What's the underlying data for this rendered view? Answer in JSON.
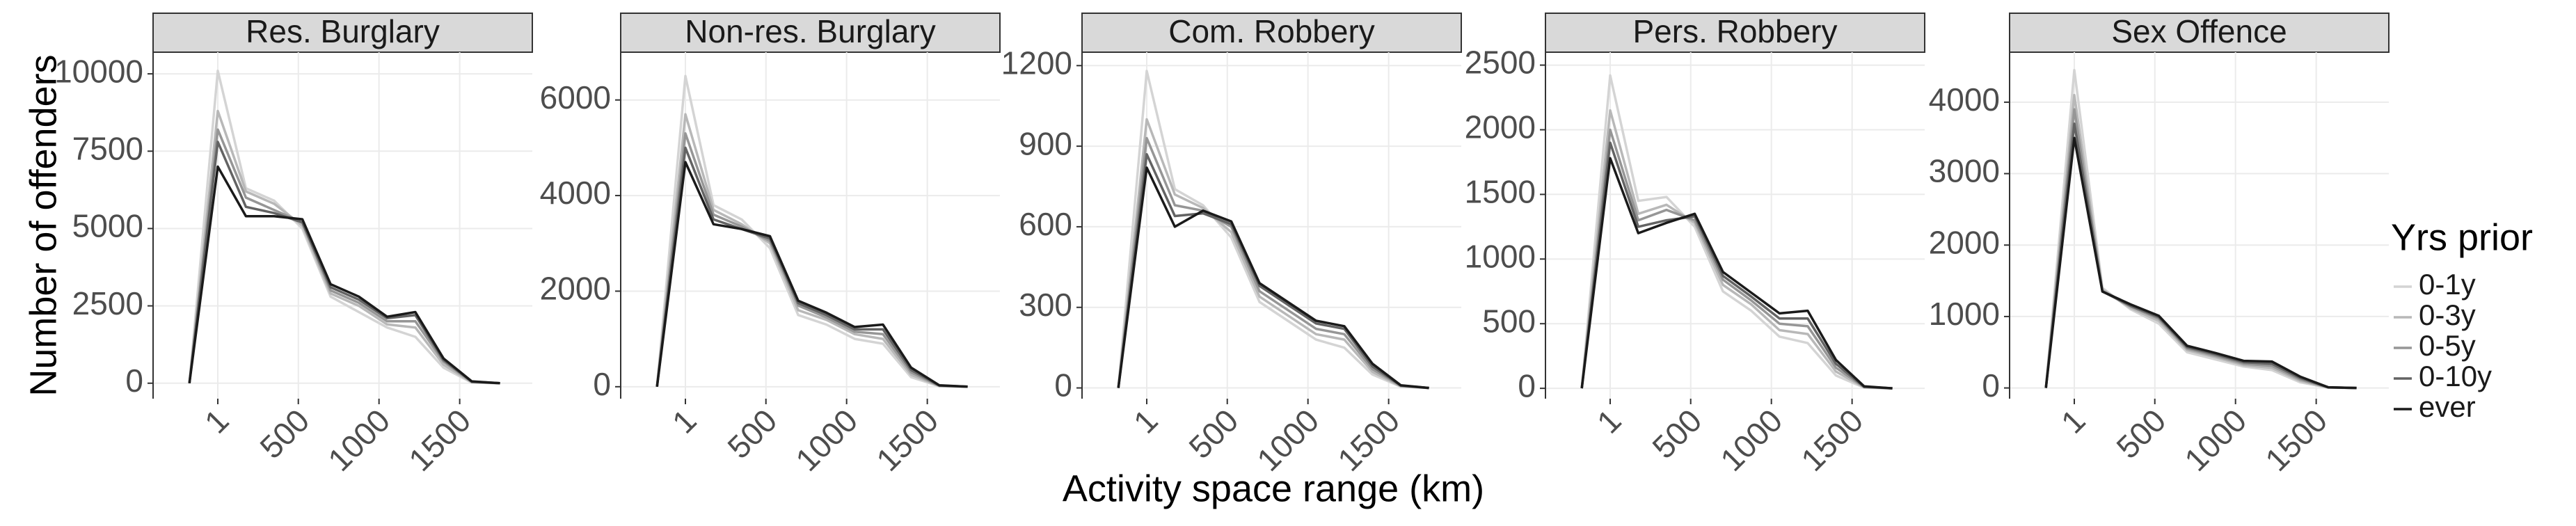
{
  "y_label": "Number of offenders",
  "x_label": "Activity space range (km)",
  "legend_title": "Yrs prior",
  "chart_data": [
    {
      "type": "line",
      "title": "Res. Burglary",
      "x": [
        -175,
        1,
        175,
        350,
        525,
        700,
        875,
        1050,
        1225,
        1400,
        1575,
        1750
      ],
      "xlim": [
        -400,
        1950
      ],
      "xticks": [
        1,
        500,
        1000,
        1500
      ],
      "ylim": [
        -500,
        10700
      ],
      "yticks": [
        0,
        2500,
        5000,
        7500,
        10000
      ],
      "grid": true,
      "series": [
        {
          "name": "0-1y",
          "color": "#d4d4d4",
          "values": [
            0,
            10100,
            6300,
            5900,
            5000,
            2800,
            2300,
            1800,
            1500,
            500,
            20,
            0
          ]
        },
        {
          "name": "0-3y",
          "color": "#b8b8b8",
          "values": [
            0,
            8800,
            6200,
            5800,
            5100,
            2900,
            2500,
            1900,
            1800,
            600,
            30,
            0
          ]
        },
        {
          "name": "0-5y",
          "color": "#969696",
          "values": [
            0,
            8200,
            6000,
            5600,
            5200,
            3000,
            2600,
            2000,
            2000,
            700,
            40,
            0
          ]
        },
        {
          "name": "0-10y",
          "color": "#636363",
          "values": [
            0,
            7800,
            5700,
            5500,
            5200,
            3100,
            2700,
            2100,
            2200,
            750,
            50,
            0
          ]
        },
        {
          "name": "ever",
          "color": "#1a1a1a",
          "values": [
            0,
            7000,
            5400,
            5400,
            5300,
            3200,
            2800,
            2150,
            2300,
            800,
            60,
            0
          ]
        }
      ]
    },
    {
      "type": "line",
      "title": "Non-res. Burglary",
      "x": [
        -175,
        1,
        175,
        350,
        525,
        700,
        875,
        1050,
        1225,
        1400,
        1575,
        1750
      ],
      "xlim": [
        -400,
        1950
      ],
      "xticks": [
        1,
        500,
        1000,
        1500
      ],
      "ylim": [
        -250,
        7000
      ],
      "yticks": [
        0,
        2000,
        4000,
        6000
      ],
      "grid": true,
      "series": [
        {
          "name": "0-1y",
          "color": "#d4d4d4",
          "values": [
            0,
            6500,
            3800,
            3500,
            2900,
            1500,
            1300,
            1000,
            900,
            200,
            10,
            0
          ]
        },
        {
          "name": "0-3y",
          "color": "#b8b8b8",
          "values": [
            0,
            5700,
            3700,
            3400,
            3000,
            1600,
            1400,
            1100,
            1000,
            250,
            15,
            0
          ]
        },
        {
          "name": "0-5y",
          "color": "#969696",
          "values": [
            0,
            5300,
            3600,
            3350,
            3050,
            1700,
            1450,
            1150,
            1100,
            300,
            20,
            0
          ]
        },
        {
          "name": "0-10y",
          "color": "#636363",
          "values": [
            0,
            5000,
            3500,
            3300,
            3100,
            1750,
            1500,
            1200,
            1200,
            350,
            25,
            0
          ]
        },
        {
          "name": "ever",
          "color": "#1a1a1a",
          "values": [
            0,
            4700,
            3400,
            3300,
            3150,
            1800,
            1550,
            1250,
            1300,
            400,
            30,
            0
          ]
        }
      ]
    },
    {
      "type": "line",
      "title": "Com. Robbery",
      "x": [
        -175,
        1,
        175,
        350,
        525,
        700,
        875,
        1050,
        1225,
        1400,
        1575,
        1750
      ],
      "xlim": [
        -400,
        1950
      ],
      "xticks": [
        1,
        500,
        1000,
        1500
      ],
      "ylim": [
        -40,
        1250
      ],
      "yticks": [
        0,
        300,
        600,
        900,
        1200
      ],
      "grid": true,
      "series": [
        {
          "name": "0-1y",
          "color": "#d4d4d4",
          "values": [
            0,
            1180,
            740,
            680,
            560,
            320,
            250,
            180,
            150,
            50,
            5,
            0
          ]
        },
        {
          "name": "0-3y",
          "color": "#b8b8b8",
          "values": [
            0,
            1000,
            720,
            670,
            580,
            340,
            270,
            200,
            180,
            60,
            6,
            0
          ]
        },
        {
          "name": "0-5y",
          "color": "#969696",
          "values": [
            0,
            930,
            680,
            660,
            600,
            360,
            290,
            220,
            200,
            70,
            8,
            0
          ]
        },
        {
          "name": "0-10y",
          "color": "#636363",
          "values": [
            0,
            870,
            640,
            650,
            610,
            380,
            310,
            240,
            220,
            80,
            9,
            0
          ]
        },
        {
          "name": "ever",
          "color": "#1a1a1a",
          "values": [
            0,
            820,
            600,
            660,
            620,
            390,
            320,
            250,
            230,
            90,
            10,
            0
          ]
        }
      ]
    },
    {
      "type": "line",
      "title": "Pers. Robbery",
      "x": [
        -175,
        1,
        175,
        350,
        525,
        700,
        875,
        1050,
        1225,
        1400,
        1575,
        1750
      ],
      "xlim": [
        -400,
        1950
      ],
      "xticks": [
        1,
        500,
        1000,
        1500
      ],
      "ylim": [
        -80,
        2600
      ],
      "yticks": [
        0,
        500,
        1000,
        1500,
        2000,
        2500
      ],
      "grid": true,
      "series": [
        {
          "name": "0-1y",
          "color": "#d4d4d4",
          "values": [
            0,
            2420,
            1450,
            1480,
            1250,
            750,
            600,
            400,
            350,
            100,
            5,
            0
          ]
        },
        {
          "name": "0-3y",
          "color": "#b8b8b8",
          "values": [
            0,
            2150,
            1350,
            1420,
            1280,
            800,
            650,
            450,
            420,
            130,
            8,
            0
          ]
        },
        {
          "name": "0-5y",
          "color": "#969696",
          "values": [
            0,
            2000,
            1300,
            1380,
            1300,
            840,
            680,
            500,
            480,
            160,
            10,
            0
          ]
        },
        {
          "name": "0-10y",
          "color": "#636363",
          "values": [
            0,
            1900,
            1250,
            1300,
            1330,
            870,
            710,
            540,
            540,
            190,
            12,
            0
          ]
        },
        {
          "name": "ever",
          "color": "#1a1a1a",
          "values": [
            0,
            1780,
            1200,
            1280,
            1350,
            900,
            740,
            580,
            600,
            220,
            15,
            0
          ]
        }
      ]
    },
    {
      "type": "line",
      "title": "Sex Offence",
      "x": [
        -175,
        1,
        175,
        350,
        525,
        700,
        875,
        1050,
        1225,
        1400,
        1575,
        1750
      ],
      "xlim": [
        -400,
        1950
      ],
      "xticks": [
        1,
        500,
        1000,
        1500
      ],
      "ylim": [
        -150,
        4700
      ],
      "yticks": [
        0,
        1000,
        2000,
        3000,
        4000
      ],
      "grid": true,
      "series": [
        {
          "name": "0-1y",
          "color": "#d4d4d4",
          "values": [
            0,
            4450,
            1400,
            1100,
            900,
            500,
            400,
            300,
            250,
            80,
            5,
            0
          ]
        },
        {
          "name": "0-3y",
          "color": "#b8b8b8",
          "values": [
            0,
            4100,
            1380,
            1120,
            940,
            530,
            430,
            320,
            280,
            100,
            6,
            0
          ]
        },
        {
          "name": "0-5y",
          "color": "#969696",
          "values": [
            0,
            3900,
            1360,
            1140,
            970,
            550,
            450,
            340,
            310,
            120,
            8,
            0
          ]
        },
        {
          "name": "0-10y",
          "color": "#636363",
          "values": [
            0,
            3700,
            1350,
            1150,
            990,
            570,
            470,
            360,
            340,
            140,
            9,
            0
          ]
        },
        {
          "name": "ever",
          "color": "#1a1a1a",
          "values": [
            0,
            3500,
            1350,
            1170,
            1010,
            590,
            490,
            380,
            370,
            160,
            10,
            0
          ]
        }
      ]
    }
  ]
}
